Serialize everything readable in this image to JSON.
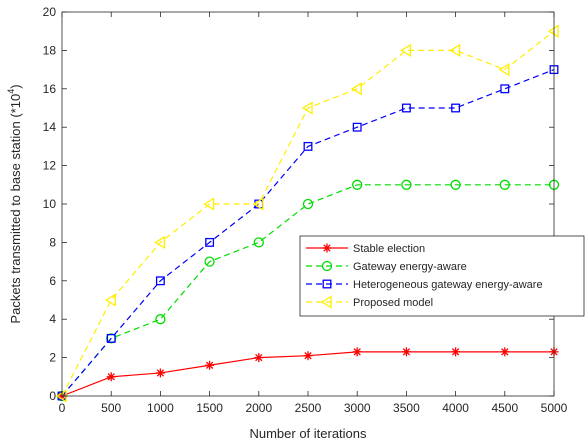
{
  "chart_data": {
    "type": "line",
    "title": "",
    "xlabel": "Number of iterations",
    "ylabel": "Packets transmitted to base station (*10",
    "ylabel_superscript": "4",
    "ylabel_suffix": ")",
    "x": [
      0,
      500,
      1000,
      1500,
      2000,
      2500,
      3000,
      3500,
      4000,
      4500,
      5000
    ],
    "xlim": [
      0,
      5000
    ],
    "ylim": [
      0,
      20
    ],
    "xticks": [
      0,
      500,
      1000,
      1500,
      2000,
      2500,
      3000,
      3500,
      4000,
      4500,
      5000
    ],
    "yticks": [
      0,
      2,
      4,
      6,
      8,
      10,
      12,
      14,
      16,
      18,
      20
    ],
    "grid": false,
    "legend_position": "center-right",
    "series": [
      {
        "name": "Stable election",
        "color": "#ff0000",
        "line": "solid",
        "marker": "asterisk",
        "values": [
          0,
          1.0,
          1.2,
          1.6,
          2.0,
          2.1,
          2.3,
          2.3,
          2.3,
          2.3,
          2.3
        ]
      },
      {
        "name": "Gateway energy-aware",
        "color": "#00dd00",
        "line": "dashed",
        "marker": "circle",
        "values": [
          0,
          3,
          4,
          7,
          8,
          10,
          11,
          11,
          11,
          11,
          11
        ]
      },
      {
        "name": "Heterogeneous gateway energy-aware",
        "color": "#0000ff",
        "line": "dashed",
        "marker": "square",
        "values": [
          0,
          3,
          6,
          8,
          10,
          13,
          14,
          15,
          15,
          16,
          17
        ]
      },
      {
        "name": "Proposed model",
        "color": "#ffee00",
        "line": "dashed",
        "marker": "triangle-left",
        "values": [
          0,
          5,
          8,
          10,
          10,
          15,
          16,
          18,
          18,
          17,
          19
        ]
      }
    ]
  }
}
